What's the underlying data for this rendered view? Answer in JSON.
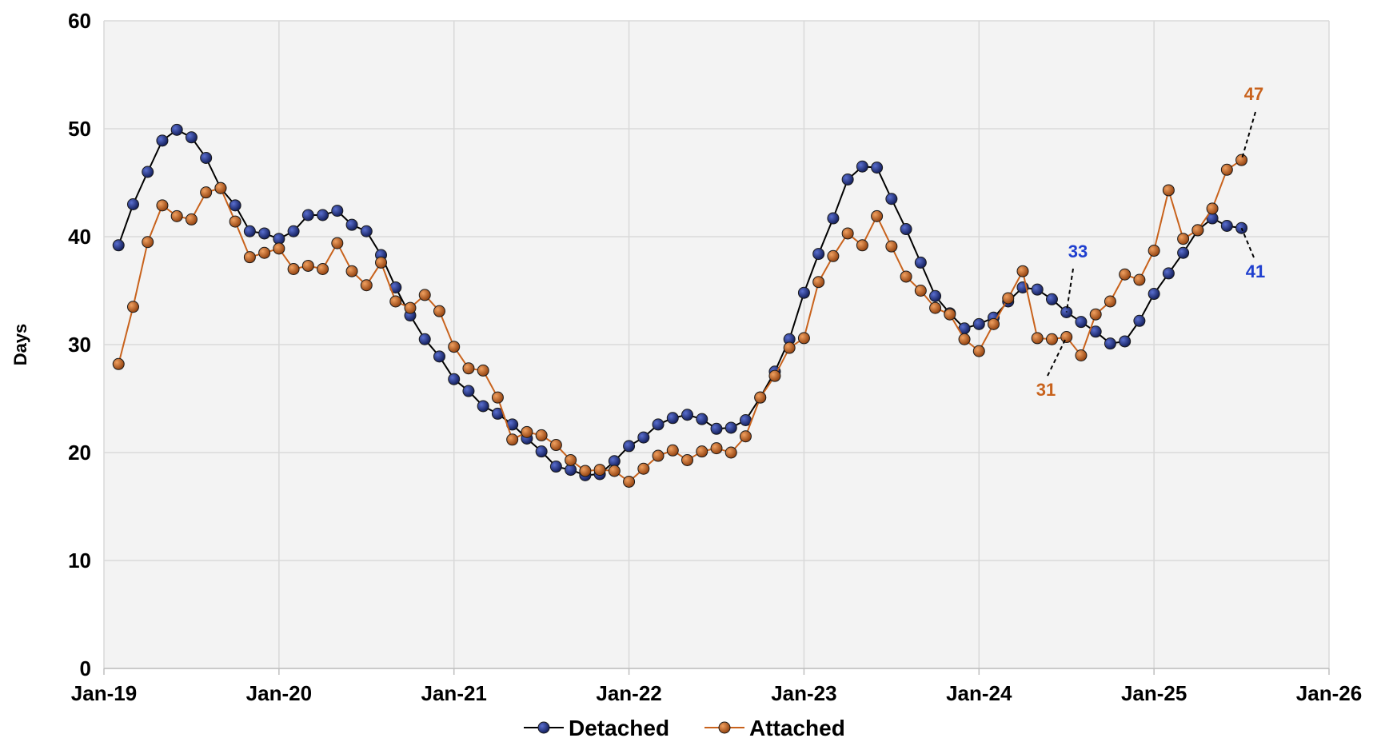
{
  "chart_data": {
    "type": "line",
    "ylabel": "Days",
    "xlabel": "",
    "ylim": [
      0,
      60
    ],
    "yticks": [
      0,
      10,
      20,
      30,
      40,
      50,
      60
    ],
    "xlim": [
      "2019-01",
      "2026-01"
    ],
    "xtick_labels": [
      "Jan-19",
      "Jan-20",
      "Jan-21",
      "Jan-22",
      "Jan-23",
      "Jan-24",
      "Jan-25",
      "Jan-26"
    ],
    "grid": true,
    "legend": "bottom",
    "x": [
      "2019-02",
      "2019-03",
      "2019-04",
      "2019-05",
      "2019-06",
      "2019-07",
      "2019-08",
      "2019-09",
      "2019-10",
      "2019-11",
      "2019-12",
      "2020-01",
      "2020-02",
      "2020-03",
      "2020-04",
      "2020-05",
      "2020-06",
      "2020-07",
      "2020-08",
      "2020-09",
      "2020-10",
      "2020-11",
      "2020-12",
      "2021-01",
      "2021-02",
      "2021-03",
      "2021-04",
      "2021-05",
      "2021-06",
      "2021-07",
      "2021-08",
      "2021-09",
      "2021-10",
      "2021-11",
      "2021-12",
      "2022-01",
      "2022-02",
      "2022-03",
      "2022-04",
      "2022-05",
      "2022-06",
      "2022-07",
      "2022-08",
      "2022-09",
      "2022-10",
      "2022-11",
      "2022-12",
      "2023-01",
      "2023-02",
      "2023-03",
      "2023-04",
      "2023-05",
      "2023-06",
      "2023-07",
      "2023-08",
      "2023-09",
      "2023-10",
      "2023-11",
      "2023-12",
      "2024-01",
      "2024-02",
      "2024-03",
      "2024-04",
      "2024-05",
      "2024-06",
      "2024-07",
      "2024-08",
      "2024-09",
      "2024-10",
      "2024-11",
      "2024-12",
      "2025-01",
      "2025-02",
      "2025-03",
      "2025-04",
      "2025-05",
      "2025-06",
      "2025-07"
    ],
    "series": [
      {
        "name": "Detached",
        "color": "#1f2f7a",
        "values": [
          39.2,
          43.0,
          46.0,
          48.9,
          49.9,
          49.2,
          47.3,
          44.5,
          42.9,
          40.5,
          40.3,
          39.8,
          40.5,
          42.0,
          42.0,
          42.4,
          41.1,
          40.5,
          38.3,
          35.3,
          32.7,
          30.5,
          28.9,
          26.8,
          25.7,
          24.3,
          23.6,
          22.6,
          21.3,
          20.1,
          18.7,
          18.4,
          17.9,
          18.0,
          19.2,
          20.6,
          21.4,
          22.6,
          23.2,
          23.5,
          23.1,
          22.2,
          22.3,
          23.0,
          25.1,
          27.5,
          30.5,
          34.8,
          38.4,
          41.7,
          45.3,
          46.5,
          46.4,
          43.5,
          40.7,
          37.6,
          34.5,
          32.9,
          31.5,
          31.9,
          32.5,
          34.0,
          35.3,
          35.1,
          34.2,
          33.0,
          32.1,
          31.2,
          30.1,
          30.3,
          32.2,
          34.7,
          36.6,
          38.5,
          40.6,
          41.7,
          41.0,
          40.8
        ]
      },
      {
        "name": "Attached",
        "color": "#c8621c",
        "values": [
          28.2,
          33.5,
          39.5,
          42.9,
          41.9,
          41.6,
          44.1,
          44.5,
          41.4,
          38.1,
          38.5,
          38.9,
          37.0,
          37.3,
          37.0,
          39.4,
          36.8,
          35.5,
          37.6,
          34.0,
          33.4,
          34.6,
          33.1,
          29.8,
          27.8,
          27.6,
          25.1,
          21.2,
          21.9,
          21.6,
          20.7,
          19.3,
          18.3,
          18.4,
          18.3,
          17.3,
          18.5,
          19.7,
          20.2,
          19.3,
          20.1,
          20.4,
          20.0,
          21.5,
          25.1,
          27.1,
          29.7,
          30.6,
          35.8,
          38.2,
          40.3,
          39.2,
          41.9,
          39.1,
          36.3,
          35.0,
          33.4,
          32.8,
          30.5,
          29.4,
          31.9,
          34.3,
          36.8,
          30.6,
          30.5,
          30.7,
          29.0,
          32.8,
          34.0,
          36.5,
          36.0,
          38.7,
          44.3,
          39.8,
          40.6,
          42.6,
          46.2,
          47.1
        ]
      }
    ],
    "annotations": [
      {
        "text": "47",
        "series": "Attached",
        "color": "#c8621c"
      },
      {
        "text": "41",
        "series": "Detached",
        "color": "#1f3fcf"
      },
      {
        "text": "33",
        "series": "Detached",
        "color": "#1f3fcf"
      },
      {
        "text": "31",
        "series": "Attached",
        "color": "#c8621c"
      }
    ]
  }
}
